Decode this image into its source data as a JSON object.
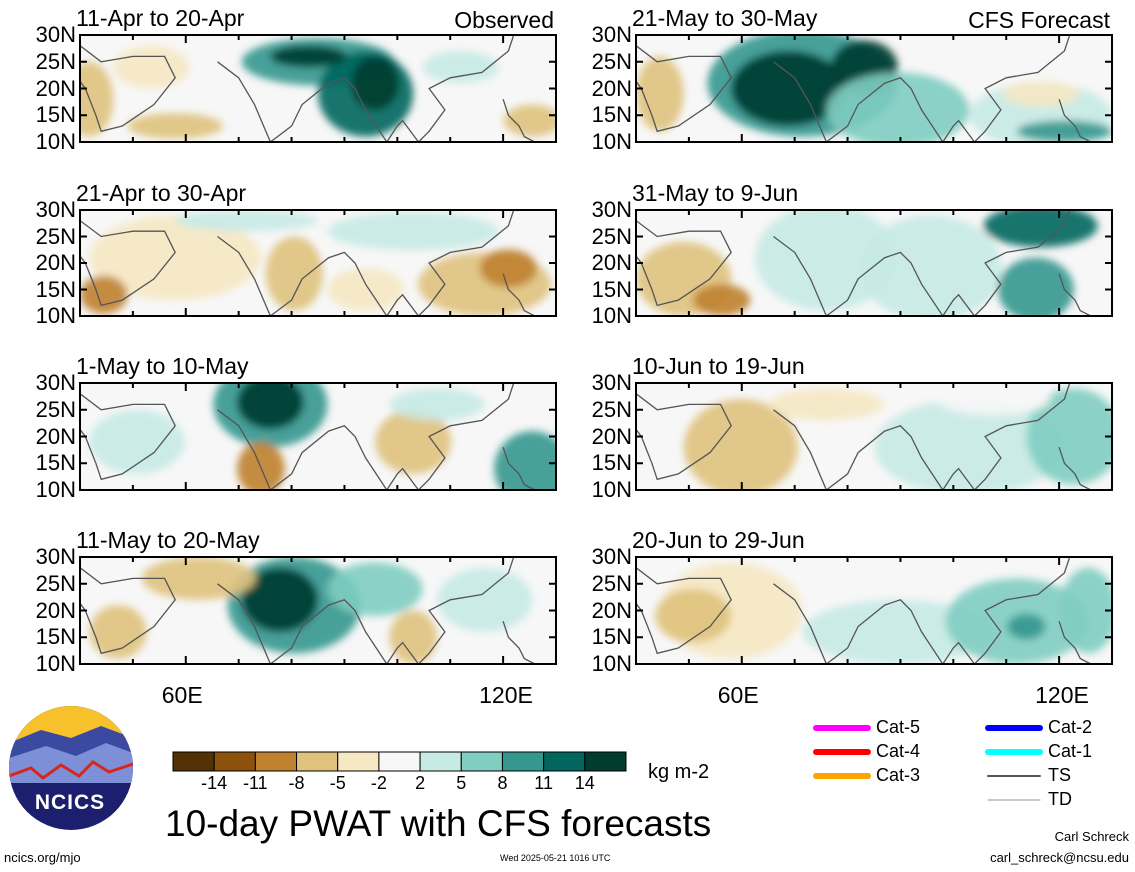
{
  "chart_data": {
    "type": "heatmap",
    "title": "10-day PWAT with CFS forecasts",
    "unit_label": "kg m-2",
    "y_ticks": [
      "30N",
      "25N",
      "20N",
      "15N",
      "10N"
    ],
    "x_ticks": [
      "60E",
      "120E"
    ],
    "columns": [
      {
        "name": "Observed",
        "panels": [
          "11-Apr to 20-Apr",
          "21-Apr to 30-Apr",
          "1-May to 10-May",
          "11-May to 20-May"
        ]
      },
      {
        "name": "CFS Forecast",
        "panels": [
          "21-May to 30-May",
          "31-May to 9-Jun",
          "10-Jun to 19-Jun",
          "20-Jun to 29-Jun"
        ]
      }
    ],
    "colorbar": {
      "labels": [
        "-14",
        "-11",
        "-8",
        "-5",
        "-2",
        "2",
        "5",
        "8",
        "11",
        "14"
      ],
      "colors": [
        "#543005",
        "#8c510a",
        "#bf812d",
        "#dfc27d",
        "#f6e8c3",
        "#f7f7f7",
        "#c7eae5",
        "#80cdc1",
        "#35978f",
        "#01665e",
        "#003c30"
      ]
    }
  },
  "legend": {
    "items": [
      {
        "label": "Cat-5",
        "color": "#ff00ff"
      },
      {
        "label": "Cat-4",
        "color": "#ff0000"
      },
      {
        "label": "Cat-3",
        "color": "#ffa500"
      },
      {
        "label": "Cat-2",
        "color": "#0000ff"
      },
      {
        "label": "Cat-1",
        "color": "#00ffff"
      },
      {
        "label": "TS",
        "color": "#555555"
      },
      {
        "label": "TD",
        "color": "#aaaaaa"
      }
    ]
  },
  "logo": {
    "text": "NCICS"
  },
  "footer": {
    "left": "ncics.org/mjo",
    "center": "Wed 2025-05-21 1016 UTC",
    "right_name": "Carl Schreck",
    "right_email": "carl_schreck@ncsu.edu"
  }
}
